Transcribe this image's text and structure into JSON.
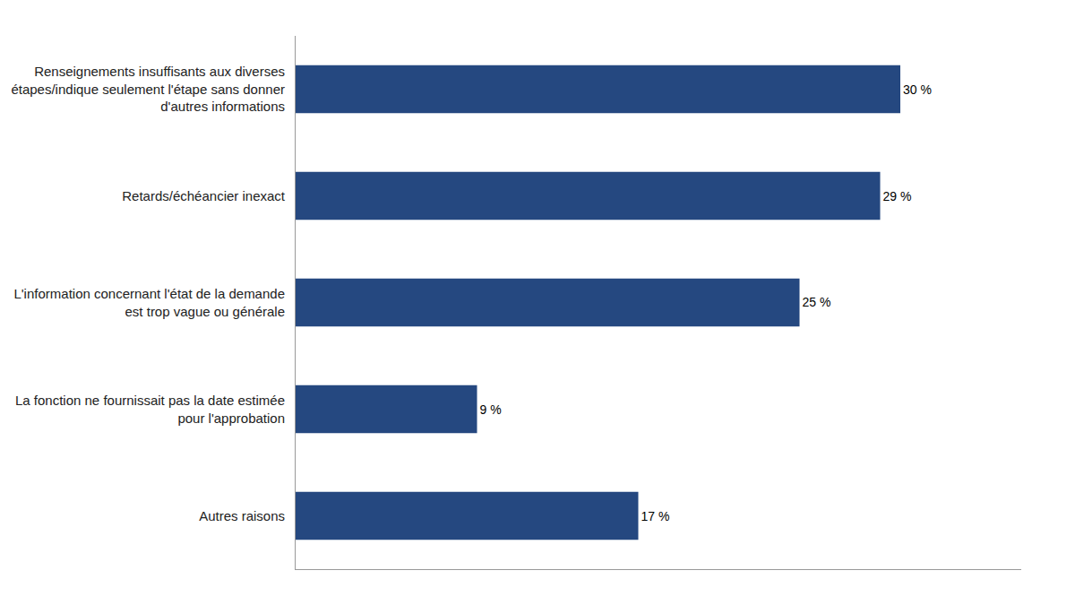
{
  "chart_data": {
    "type": "bar",
    "orientation": "horizontal",
    "categories": [
      "Autres raisons",
      "La fonction ne fournissait pas la date estimée\npour l'approbation",
      "L'information concernant l'état de la demande\nest trop vague ou générale",
      "Retards/échéancier inexact",
      "Renseignements insuffisants aux diverses\nétapes/indique seulement l'étape sans donner\nd'autres informations"
    ],
    "values": [
      17,
      9,
      25,
      29,
      30
    ],
    "value_labels": [
      "17 %",
      "9 %",
      "25 %",
      "29 %",
      "30 %"
    ],
    "data_labels": true,
    "color": "#254880",
    "xlim": [
      0,
      36
    ],
    "grid": false,
    "tick_labels": "y"
  }
}
